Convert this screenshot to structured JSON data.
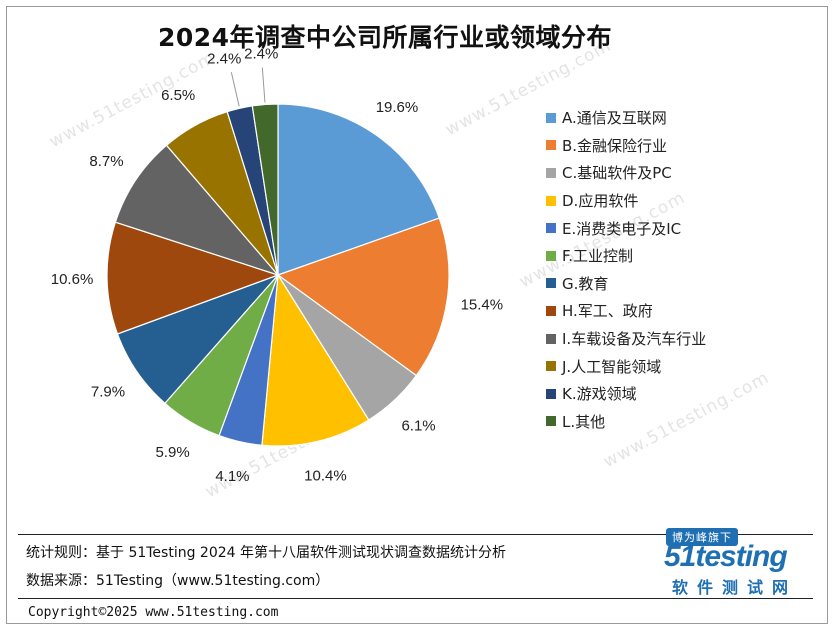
{
  "chart_data": {
    "type": "pie",
    "title": "2024年调查中公司所属行业或领域分布",
    "categories": [
      "A.通信及互联网",
      "B.金融保险行业",
      "C.基础软件及PC",
      "D.应用软件",
      "E.消费类电子及IC",
      "F.工业控制",
      "G.教育",
      "H.军工、政府",
      "I.车载设备及汽车行业",
      "J.人工智能领域",
      "K.游戏领域",
      "L.其他"
    ],
    "values": [
      19.6,
      15.4,
      6.1,
      10.4,
      4.1,
      5.9,
      7.9,
      10.6,
      8.7,
      6.5,
      2.4,
      2.4
    ],
    "data_labels": [
      "19.6%",
      "15.4%",
      "6.1%",
      "10.4%",
      "4.1%",
      "5.9%",
      "7.9%",
      "10.6%",
      "8.7%",
      "6.5%",
      "2.4%",
      "2.4%"
    ],
    "colors": [
      "#5B9BD5",
      "#ED7D31",
      "#A5A5A5",
      "#FFC000",
      "#4472C4",
      "#70AD47",
      "#255E91",
      "#9E480E",
      "#636363",
      "#997300",
      "#264478",
      "#43682B"
    ],
    "legend_position": "right",
    "start_angle": "12 o'clock, clockwise"
  },
  "footer": {
    "rule_text": "统计规则：基于 51Testing 2024 年第十八届软件测试现状调查数据统计分析",
    "source_text": "数据来源：51Testing（www.51testing.com）",
    "copyright": "Copyright©2025 www.51testing.com"
  },
  "logo": {
    "badge": "博为峰旗下",
    "name": "51testing",
    "subtitle": "软件测试网"
  },
  "watermark": "www.51testing.com"
}
